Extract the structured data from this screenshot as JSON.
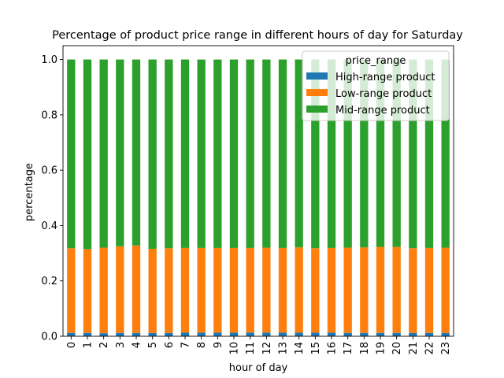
{
  "chart_data": {
    "type": "bar",
    "stacked": true,
    "title": "Percentage of product price range in different hours of day for Saturday",
    "xlabel": "hour of day",
    "ylabel": "percentage",
    "ylim": [
      0,
      1.05
    ],
    "yticks": [
      "0.0",
      "0.2",
      "0.4",
      "0.6",
      "0.8",
      "1.0"
    ],
    "categories": [
      "0",
      "1",
      "2",
      "3",
      "4",
      "5",
      "6",
      "7",
      "8",
      "9",
      "10",
      "11",
      "12",
      "13",
      "14",
      "15",
      "16",
      "17",
      "18",
      "19",
      "20",
      "21",
      "22",
      "23"
    ],
    "legend": {
      "title": "price_range",
      "position": "top-right"
    },
    "grid": false,
    "series": [
      {
        "name": "High-range product",
        "color": "#1f77b4",
        "values": [
          0.012,
          0.012,
          0.011,
          0.012,
          0.012,
          0.012,
          0.012,
          0.013,
          0.013,
          0.013,
          0.013,
          0.013,
          0.013,
          0.013,
          0.013,
          0.013,
          0.013,
          0.012,
          0.012,
          0.012,
          0.012,
          0.012,
          0.012,
          0.012
        ]
      },
      {
        "name": "Low-range product",
        "color": "#ff7f0e",
        "values": [
          0.306,
          0.303,
          0.309,
          0.313,
          0.316,
          0.304,
          0.306,
          0.306,
          0.306,
          0.306,
          0.306,
          0.306,
          0.307,
          0.306,
          0.308,
          0.305,
          0.306,
          0.308,
          0.309,
          0.311,
          0.311,
          0.306,
          0.307,
          0.308
        ]
      },
      {
        "name": "Mid-range product",
        "color": "#2ca02c",
        "values": [
          0.682,
          0.685,
          0.68,
          0.675,
          0.672,
          0.684,
          0.682,
          0.681,
          0.681,
          0.681,
          0.681,
          0.681,
          0.68,
          0.681,
          0.679,
          0.682,
          0.681,
          0.68,
          0.679,
          0.677,
          0.677,
          0.682,
          0.681,
          0.68
        ]
      }
    ]
  }
}
